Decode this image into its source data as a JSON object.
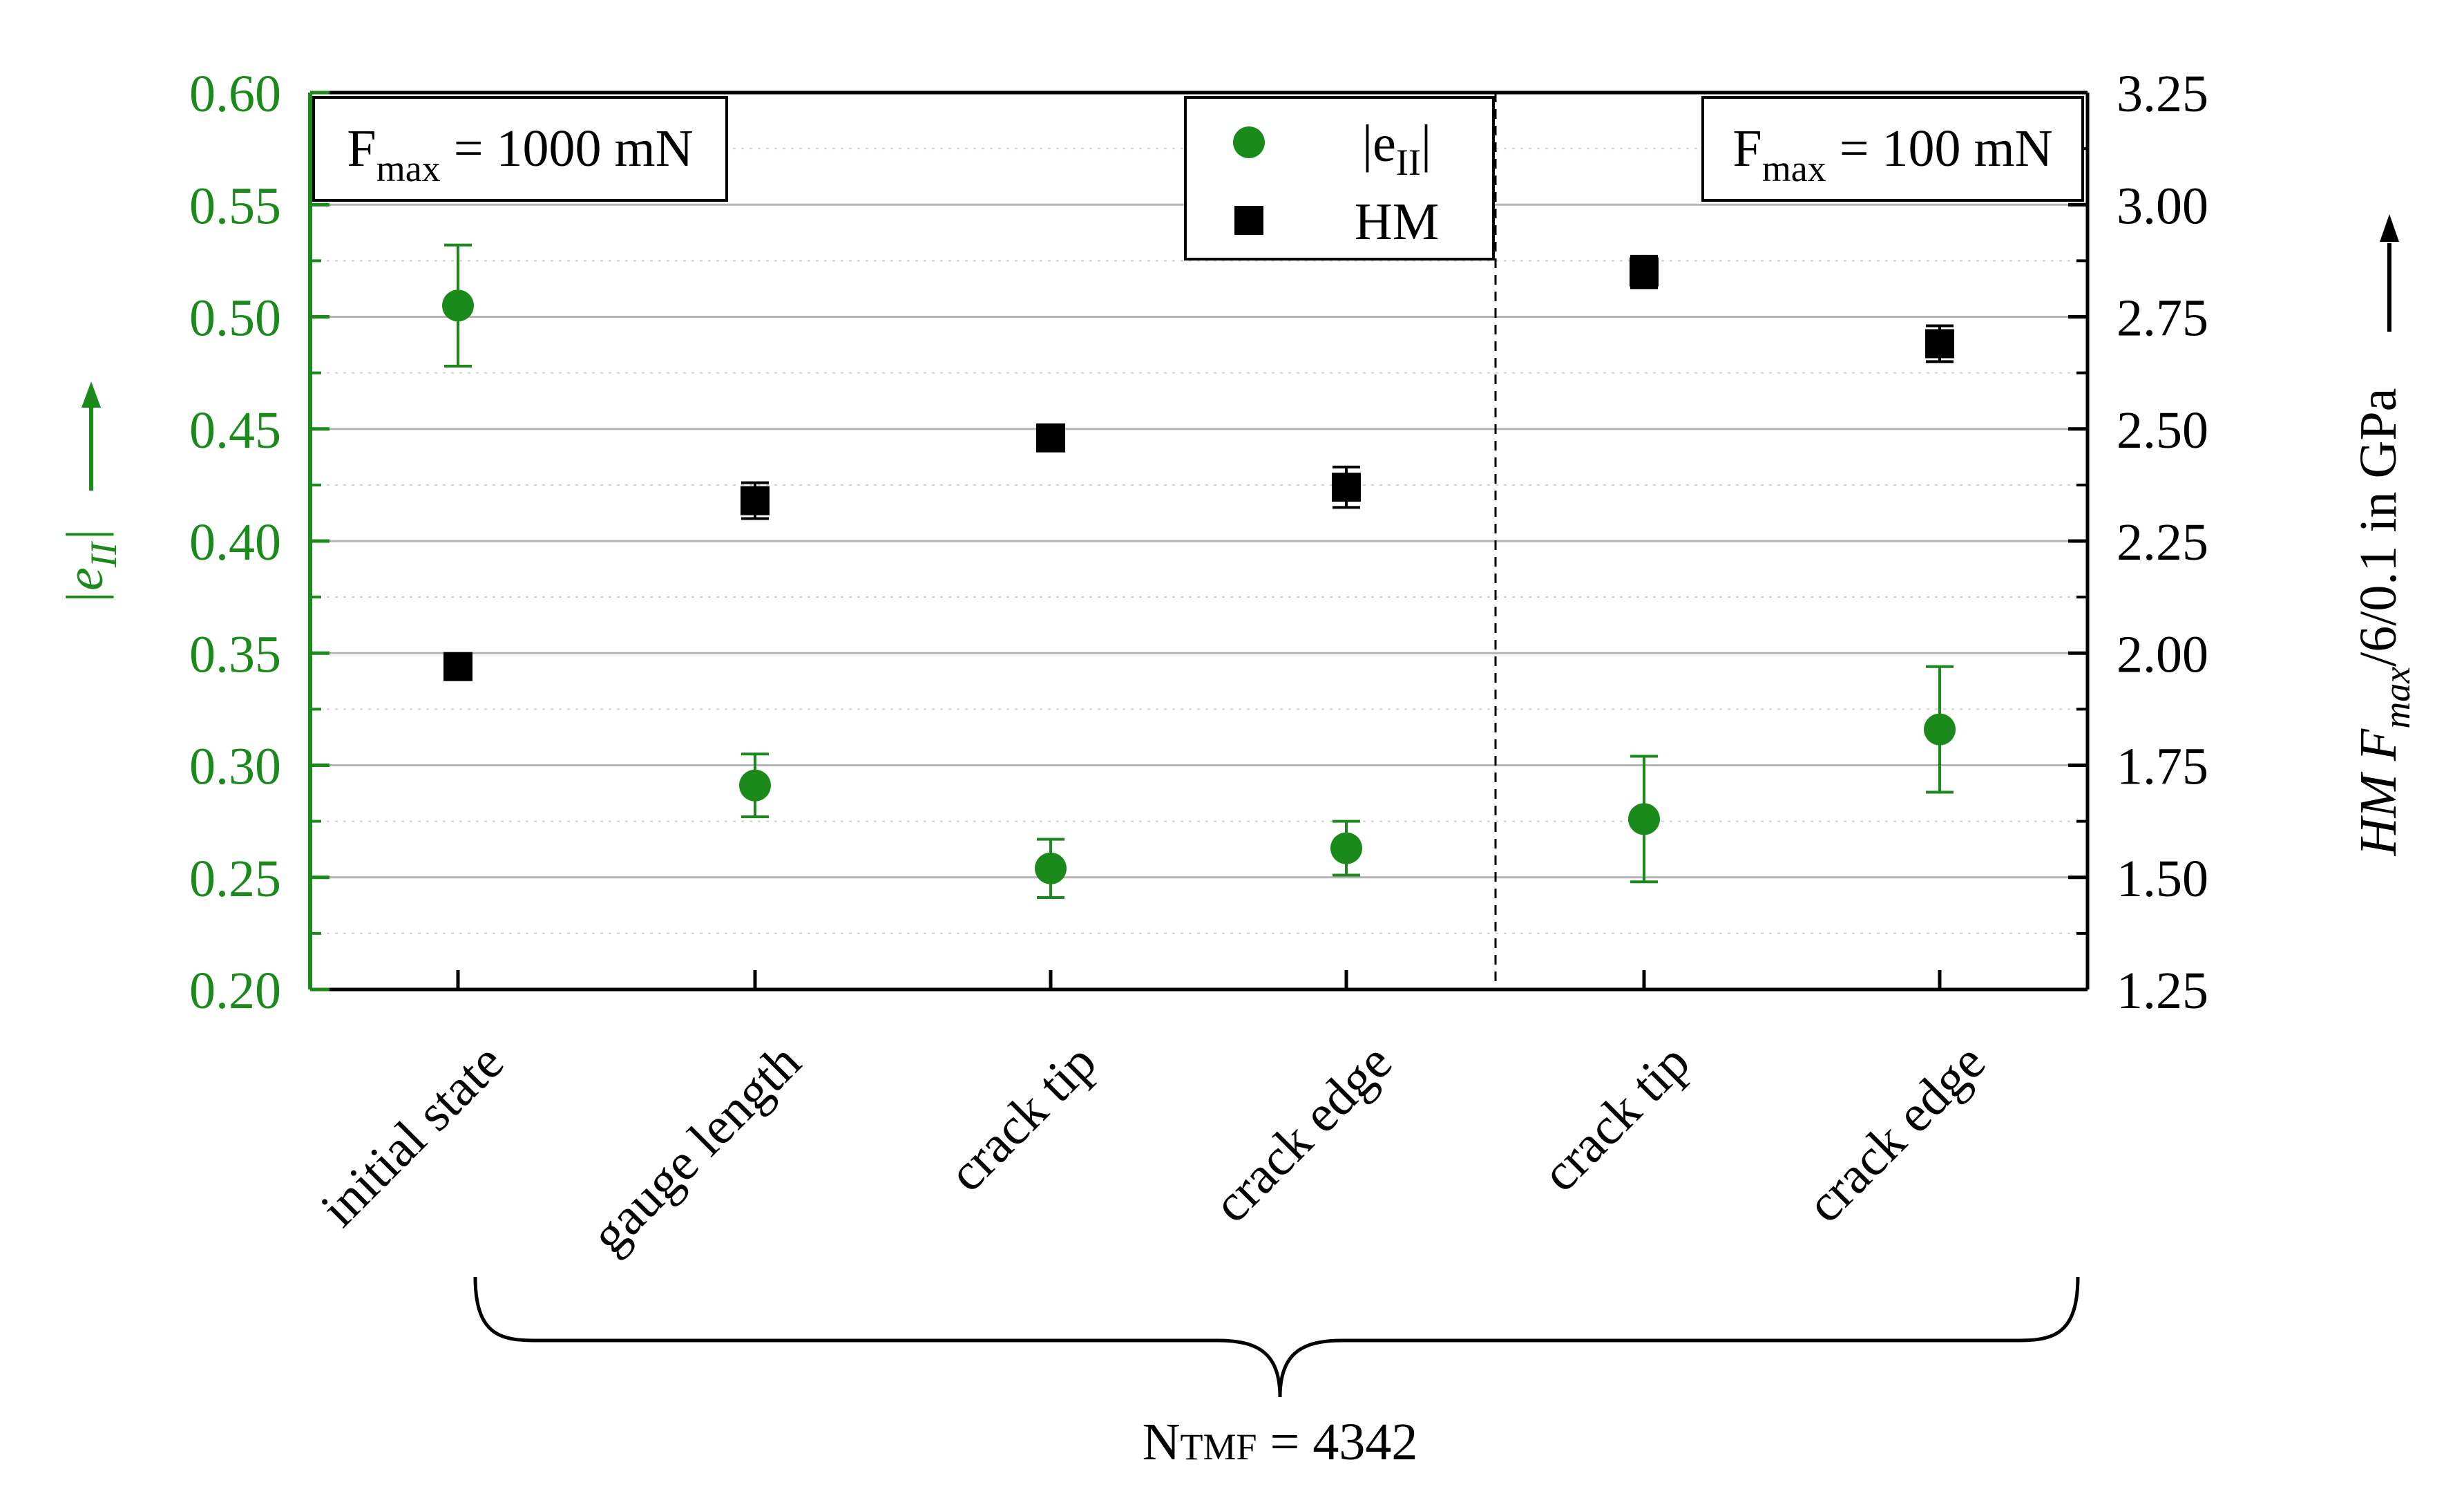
{
  "chart_data": {
    "type": "scatter",
    "categories": [
      "initial state",
      "gauge length",
      "crack tip",
      "crack edge",
      "crack tip",
      "crack edge"
    ],
    "y_left": {
      "ylim": [
        0.2,
        0.6
      ],
      "ticks": [
        "0.20",
        "0.25",
        "0.30",
        "0.35",
        "0.40",
        "0.45",
        "0.50",
        "0.55",
        "0.60"
      ],
      "label_main": "|e",
      "label_sub": "II",
      "label_end": "|",
      "color": "#1a8a1a"
    },
    "y_right": {
      "ylim": [
        1.25,
        3.25
      ],
      "ticks": [
        "1.25",
        "1.50",
        "1.75",
        "2.00",
        "2.25",
        "2.50",
        "2.75",
        "3.00",
        "3.25"
      ],
      "label_main": "HM F",
      "label_sub": "max",
      "label_end": "/6/0.1 in GPa",
      "color": "#000000"
    },
    "series": [
      {
        "name_main": "|e",
        "name_sub": "II",
        "name_end": "|",
        "axis": "left",
        "marker": "circle",
        "color": "#1a8a1a",
        "values": [
          0.505,
          0.291,
          0.254,
          0.263,
          0.276,
          0.316
        ],
        "errors": [
          0.027,
          0.014,
          0.013,
          0.012,
          0.028,
          0.028
        ]
      },
      {
        "name_main": "HM",
        "name_sub": "",
        "name_end": "",
        "axis": "right",
        "marker": "square",
        "color": "#000000",
        "values": [
          1.97,
          2.34,
          2.48,
          2.37,
          2.85,
          2.69
        ],
        "errors": [
          0.02,
          0.04,
          0.025,
          0.045,
          0.035,
          0.04
        ]
      }
    ],
    "regions": [
      {
        "force_label": "F",
        "force_sub": "max",
        "force_value": " = 1000 mN"
      },
      {
        "force_label": "F",
        "force_sub": "max",
        "force_value": " = 100 mN"
      }
    ],
    "divider_after_index": 3,
    "brace_label": "N",
    "brace_sub": "TMF",
    "brace_value": " = 4342",
    "grid": true,
    "legend_position": "top-center"
  }
}
